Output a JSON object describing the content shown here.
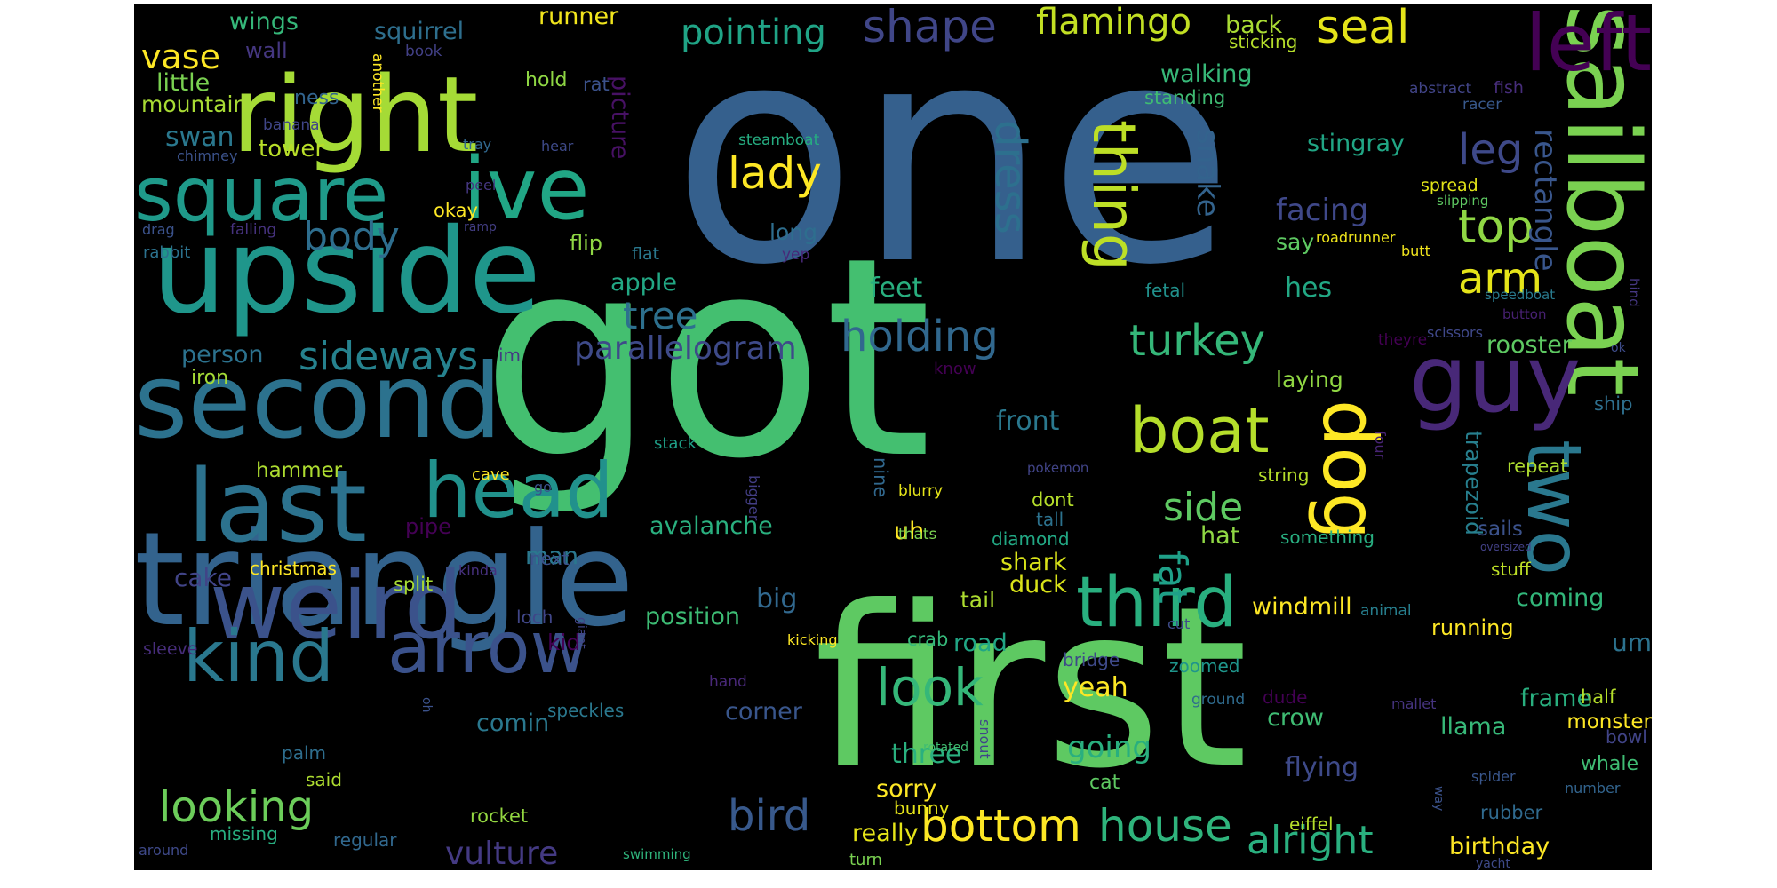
{
  "palette": {
    "background": "#000000",
    "outer": "#ffffff",
    "colormap": "viridis"
  },
  "words": [
    {
      "text": "one",
      "color": "#35608d"
    },
    {
      "text": "got",
      "color": "#44bf70"
    },
    {
      "text": "first",
      "color": "#5ec962"
    },
    {
      "text": "triangle",
      "color": "#33638d"
    },
    {
      "text": "upside",
      "color": "#1f968b"
    },
    {
      "text": "right",
      "color": "#a5db36"
    },
    {
      "text": "second",
      "color": "#2c728e"
    },
    {
      "text": "last",
      "color": "#2c728e"
    },
    {
      "text": "weird",
      "color": "#3b528b"
    },
    {
      "text": "sailboat",
      "color": "#7ad151"
    },
    {
      "text": "guy",
      "color": "#482878"
    },
    {
      "text": "square",
      "color": "#1f9a8a"
    },
    {
      "text": "ive",
      "color": "#21a685"
    },
    {
      "text": "left",
      "color": "#440154"
    },
    {
      "text": "head",
      "color": "#21918c"
    },
    {
      "text": "arrow",
      "color": "#3b528b"
    },
    {
      "text": "kind",
      "color": "#2a788e"
    },
    {
      "text": "dog",
      "color": "#fde725"
    },
    {
      "text": "two",
      "color": "#2a788e"
    },
    {
      "text": "third",
      "color": "#29af7f"
    },
    {
      "text": "boat",
      "color": "#b5de2b"
    },
    {
      "text": "thing",
      "color": "#bddf26"
    },
    {
      "text": "look",
      "color": "#35b779"
    },
    {
      "text": "bottom",
      "color": "#fde725"
    },
    {
      "text": "house",
      "color": "#2fb47c"
    },
    {
      "text": "looking",
      "color": "#6ccd5a"
    },
    {
      "text": "bird",
      "color": "#38598c"
    },
    {
      "text": "shape",
      "color": "#404688"
    },
    {
      "text": "flamingo",
      "color": "#c2df23"
    },
    {
      "text": "seal",
      "color": "#e5e419"
    },
    {
      "text": "pointing",
      "color": "#20a486"
    },
    {
      "text": "lady",
      "color": "#fde725"
    },
    {
      "text": "dress",
      "color": "#2d708e"
    },
    {
      "text": "holding",
      "color": "#31688e"
    },
    {
      "text": "turkey",
      "color": "#35b779"
    },
    {
      "text": "top",
      "color": "#8fd744"
    },
    {
      "text": "arm",
      "color": "#e5e419"
    },
    {
      "text": "leg",
      "color": "#3e4989"
    },
    {
      "text": "side",
      "color": "#5ec962"
    },
    {
      "text": "fat",
      "color": "#1fa088"
    },
    {
      "text": "alright",
      "color": "#2ab07f"
    },
    {
      "text": "vulture",
      "color": "#443a83"
    },
    {
      "text": "parallelogram",
      "color": "#3e4a89"
    },
    {
      "text": "sideways",
      "color": "#26828e"
    },
    {
      "text": "tree",
      "color": "#2d708e"
    },
    {
      "text": "body",
      "color": "#2e6e8e"
    },
    {
      "text": "vase",
      "color": "#fde725"
    },
    {
      "text": "swan",
      "color": "#2a788e"
    },
    {
      "text": "tower",
      "color": "#b8de29"
    },
    {
      "text": "wings",
      "color": "#35b779"
    },
    {
      "text": "squirrel",
      "color": "#2e6f8e"
    },
    {
      "text": "runner",
      "color": "#f1e51d"
    },
    {
      "text": "little",
      "color": "#7ad151"
    },
    {
      "text": "mountain",
      "color": "#a8db34"
    },
    {
      "text": "wall",
      "color": "#453781"
    },
    {
      "text": "ness",
      "color": "#32648e"
    },
    {
      "text": "banana",
      "color": "#404688"
    },
    {
      "text": "another",
      "color": "#fde725"
    },
    {
      "text": "book",
      "color": "#424086"
    },
    {
      "text": "hold",
      "color": "#8fd744"
    },
    {
      "text": "rat",
      "color": "#3b528b"
    },
    {
      "text": "picture",
      "color": "#471164"
    },
    {
      "text": "back",
      "color": "#a8db34"
    },
    {
      "text": "sticking",
      "color": "#b5de2b"
    },
    {
      "text": "walking",
      "color": "#37b878"
    },
    {
      "text": "standing",
      "color": "#3fbc73"
    },
    {
      "text": "abstract",
      "color": "#414487"
    },
    {
      "text": "fish",
      "color": "#472d7b"
    },
    {
      "text": "racer",
      "color": "#38598c"
    },
    {
      "text": "rectangle",
      "color": "#39568c"
    },
    {
      "text": "stingray",
      "color": "#21a685"
    },
    {
      "text": "steamboat",
      "color": "#26ad81"
    },
    {
      "text": "snake",
      "color": "#33638d"
    },
    {
      "text": "facing",
      "color": "#3f4889"
    },
    {
      "text": "say",
      "color": "#5ec962"
    },
    {
      "text": "roadrunner",
      "color": "#efe51c"
    },
    {
      "text": "butt",
      "color": "#f1e51d"
    },
    {
      "text": "spread",
      "color": "#e2e418"
    },
    {
      "text": "slipping",
      "color": "#5ec962"
    },
    {
      "text": "speedboat",
      "color": "#297a8e"
    },
    {
      "text": "button",
      "color": "#482173"
    },
    {
      "text": "hind",
      "color": "#453781"
    },
    {
      "text": "scissors",
      "color": "#3f4889"
    },
    {
      "text": "ok",
      "color": "#3e4c8a"
    },
    {
      "text": "theyre",
      "color": "#440154"
    },
    {
      "text": "rooster",
      "color": "#5ec962"
    },
    {
      "text": "hes",
      "color": "#22a884"
    },
    {
      "text": "laying",
      "color": "#90d743"
    },
    {
      "text": "ship",
      "color": "#2e6f8e"
    },
    {
      "text": "trapezoid",
      "color": "#277f8e"
    },
    {
      "text": "four",
      "color": "#482475"
    },
    {
      "text": "repeat",
      "color": "#addc30"
    },
    {
      "text": "string",
      "color": "#b5de2b"
    },
    {
      "text": "something",
      "color": "#28ae80"
    },
    {
      "text": "sails",
      "color": "#3b528b"
    },
    {
      "text": "oversized",
      "color": "#424086"
    },
    {
      "text": "stuff",
      "color": "#bddf26"
    },
    {
      "text": "coming",
      "color": "#32b67a"
    },
    {
      "text": "windmill",
      "color": "#fde725"
    },
    {
      "text": "running",
      "color": "#fde725"
    },
    {
      "text": "crow",
      "color": "#3fbc73"
    },
    {
      "text": "llama",
      "color": "#37b878"
    },
    {
      "text": "frame",
      "color": "#29af7f"
    },
    {
      "text": "flying",
      "color": "#3e4a89"
    },
    {
      "text": "monster",
      "color": "#fde725"
    },
    {
      "text": "half",
      "color": "#b5de2b"
    },
    {
      "text": "bowl",
      "color": "#414487"
    },
    {
      "text": "whale",
      "color": "#3fbc73"
    },
    {
      "text": "spider",
      "color": "#39568c"
    },
    {
      "text": "number",
      "color": "#32648e"
    },
    {
      "text": "rubber",
      "color": "#306a8e"
    },
    {
      "text": "birthday",
      "color": "#fde725"
    },
    {
      "text": "yacht",
      "color": "#3e4a89"
    },
    {
      "text": "way",
      "color": "#3b528b"
    },
    {
      "text": "mallet",
      "color": "#463480"
    },
    {
      "text": "animal",
      "color": "#277f8e"
    },
    {
      "text": "um",
      "color": "#2c728e"
    },
    {
      "text": "eiffel",
      "color": "#b5de2b"
    },
    {
      "text": "dude",
      "color": "#440154"
    },
    {
      "text": "ground",
      "color": "#2f6b8e"
    },
    {
      "text": "zoomed",
      "color": "#1f958b"
    },
    {
      "text": "really",
      "color": "#e5e419"
    },
    {
      "text": "turn",
      "color": "#7ad151"
    },
    {
      "text": "sorry",
      "color": "#fde725"
    },
    {
      "text": "three",
      "color": "#2ab07f"
    },
    {
      "text": "going",
      "color": "#29af7f"
    },
    {
      "text": "yeah",
      "color": "#fde725"
    },
    {
      "text": "shark",
      "color": "#d8e219"
    },
    {
      "text": "duck",
      "color": "#d8e219"
    },
    {
      "text": "hat",
      "color": "#8fd744"
    },
    {
      "text": "dont",
      "color": "#b5de2b"
    },
    {
      "text": "diamond",
      "color": "#22a884"
    },
    {
      "text": "tall",
      "color": "#2c728e"
    },
    {
      "text": "front",
      "color": "#2a788e"
    },
    {
      "text": "tail",
      "color": "#addc30"
    },
    {
      "text": "road",
      "color": "#21a685"
    },
    {
      "text": "crab",
      "color": "#35b779"
    },
    {
      "text": "bridge",
      "color": "#3e4989"
    },
    {
      "text": "kicking",
      "color": "#fde725"
    },
    {
      "text": "uh",
      "color": "#fde725"
    },
    {
      "text": "nine",
      "color": "#31688e"
    },
    {
      "text": "blurry",
      "color": "#e5e419"
    },
    {
      "text": "bunny",
      "color": "#e5e419"
    },
    {
      "text": "rotated",
      "color": "#40bd72"
    },
    {
      "text": "snout",
      "color": "#404688"
    },
    {
      "text": "pokemon",
      "color": "#414487"
    },
    {
      "text": "bigger",
      "color": "#433e85"
    },
    {
      "text": "feet",
      "color": "#29af7f"
    },
    {
      "text": "fetal",
      "color": "#21918c"
    },
    {
      "text": "apple",
      "color": "#22a884"
    },
    {
      "text": "long",
      "color": "#2e6e8e"
    },
    {
      "text": "yep",
      "color": "#482878"
    },
    {
      "text": "flat",
      "color": "#2a788e"
    },
    {
      "text": "flip",
      "color": "#8fd744"
    },
    {
      "text": "avalanche",
      "color": "#2ab07f"
    },
    {
      "text": "man",
      "color": "#2a788e"
    },
    {
      "text": "big",
      "color": "#31688e"
    },
    {
      "text": "position",
      "color": "#3dbc74"
    },
    {
      "text": "corner",
      "color": "#39568c"
    },
    {
      "text": "speckles",
      "color": "#2a788e"
    },
    {
      "text": "hand",
      "color": "#482878"
    },
    {
      "text": "loch",
      "color": "#404688"
    },
    {
      "text": "giant",
      "color": "#414487"
    },
    {
      "text": "kid",
      "color": "#440154"
    },
    {
      "text": "cut",
      "color": "#3e4c8a"
    },
    {
      "text": "next",
      "color": "#3b528b"
    },
    {
      "text": "kinda",
      "color": "#46307e"
    },
    {
      "text": "christmas",
      "color": "#fde725"
    },
    {
      "text": "split",
      "color": "#a8db34"
    },
    {
      "text": "pipe",
      "color": "#440154"
    },
    {
      "text": "cake",
      "color": "#414487"
    },
    {
      "text": "hammer",
      "color": "#addc30"
    },
    {
      "text": "person",
      "color": "#2c728e"
    },
    {
      "text": "iron",
      "color": "#a5db36"
    },
    {
      "text": "im",
      "color": "#443a83"
    },
    {
      "text": "chimney",
      "color": "#3b528b"
    },
    {
      "text": "hear",
      "color": "#3e4a89"
    },
    {
      "text": "tray",
      "color": "#31688e"
    },
    {
      "text": "peel",
      "color": "#453781"
    },
    {
      "text": "okay",
      "color": "#fde725"
    },
    {
      "text": "ramp",
      "color": "#433e85"
    },
    {
      "text": "drag",
      "color": "#3b528b"
    },
    {
      "text": "falling",
      "color": "#46327e"
    },
    {
      "text": "rabbit",
      "color": "#2c728e"
    },
    {
      "text": "comin",
      "color": "#2a788e"
    },
    {
      "text": "cave",
      "color": "#fde725"
    },
    {
      "text": "go",
      "color": "#3b528b"
    },
    {
      "text": "stack",
      "color": "#1fa088"
    },
    {
      "text": "knoW",
      "color": "#440154"
    },
    {
      "text": "thats",
      "color": "#7ad151"
    },
    {
      "text": "oh",
      "color": "#3b528b"
    },
    {
      "text": "cat",
      "color": "#5ec962"
    },
    {
      "text": "palm",
      "color": "#2e6e8e"
    },
    {
      "text": "said",
      "color": "#addc30"
    },
    {
      "text": "sleeve",
      "color": "#472d7b"
    },
    {
      "text": "rocket",
      "color": "#93d741"
    },
    {
      "text": "missing",
      "color": "#28ae80"
    },
    {
      "text": "regular",
      "color": "#31688e"
    },
    {
      "text": "around",
      "color": "#3e4989"
    },
    {
      "text": "swimming",
      "color": "#2fb47c"
    }
  ]
}
